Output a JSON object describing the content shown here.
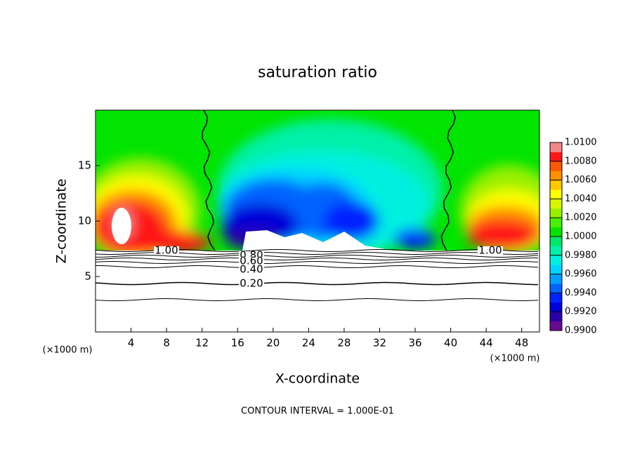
{
  "chart_data": {
    "type": "contour",
    "title": "saturation ratio",
    "xlabel": "X-coordinate",
    "ylabel": "Z-coordinate",
    "unit_labels": [
      "(×1000 m)",
      "(×1000 m)"
    ],
    "note": "CONTOUR INTERVAL = 1.000E-01",
    "xlim": [
      0,
      50
    ],
    "ylim": [
      0,
      20
    ],
    "xticks": [
      4,
      8,
      12,
      16,
      20,
      24,
      28,
      32,
      36,
      40,
      44,
      48
    ],
    "yticks": [
      5,
      10,
      15
    ],
    "colorbar": {
      "lim": [
        0.99,
        1.01
      ],
      "ticks": [
        {
          "value": 0.99,
          "label": "0.9900"
        },
        {
          "value": 0.992,
          "label": "0.9920"
        },
        {
          "value": 0.994,
          "label": "0.9940"
        },
        {
          "value": 0.996,
          "label": "0.9960"
        },
        {
          "value": 0.998,
          "label": "0.9980"
        },
        {
          "value": 1.0,
          "label": "1.0000"
        },
        {
          "value": 1.002,
          "label": "1.0020"
        },
        {
          "value": 1.004,
          "label": "1.0040"
        },
        {
          "value": 1.006,
          "label": "1.0060"
        },
        {
          "value": 1.008,
          "label": "1.0080"
        },
        {
          "value": 1.01,
          "label": "1.0100"
        }
      ],
      "colors": [
        "#6a0a90",
        "#2a00a8",
        "#0000d8",
        "#0024ff",
        "#0064ff",
        "#00a0ff",
        "#00d4ff",
        "#00f0e0",
        "#00f0a8",
        "#00e868",
        "#00e400",
        "#48f000",
        "#98f000",
        "#d8f400",
        "#ffff00",
        "#ffc800",
        "#ff9000",
        "#ff5800",
        "#ff1818",
        "#f08888"
      ]
    },
    "contour_labels": [
      {
        "value": 1.0,
        "label": "1.00"
      },
      {
        "value": 0.8,
        "label": "0.80"
      },
      {
        "value": 0.6,
        "label": "0.60"
      },
      {
        "value": 0.4,
        "label": "0.40"
      },
      {
        "value": 0.2,
        "label": "0.20"
      },
      {
        "value": 1.0,
        "label": "1.00"
      }
    ]
  }
}
